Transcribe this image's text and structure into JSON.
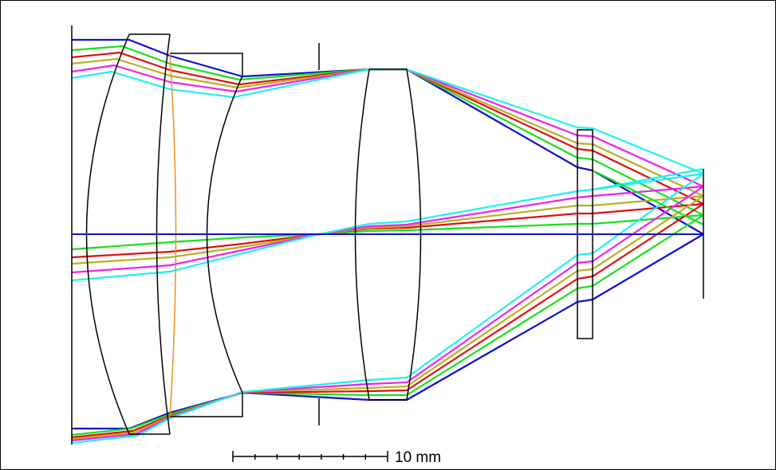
{
  "title": "",
  "scale_bar": {
    "label": "10 mm",
    "length_mm": 10,
    "ticks": 8
  },
  "ray_colors": {
    "blue": "#1010d0",
    "green": "#18e018",
    "red": "#e01010",
    "olive": "#b8b020",
    "magenta": "#f020f0",
    "cyan": "#20f0f0"
  },
  "lens_outline_color": "#000000",
  "cemented_interface_color": "#f09020",
  "elements": [
    {
      "name": "front-meniscus-lens"
    },
    {
      "name": "cemented-doublet"
    },
    {
      "name": "aperture-stop"
    },
    {
      "name": "biconvex-lens"
    },
    {
      "name": "filter-plate"
    },
    {
      "name": "image-plane"
    }
  ]
}
